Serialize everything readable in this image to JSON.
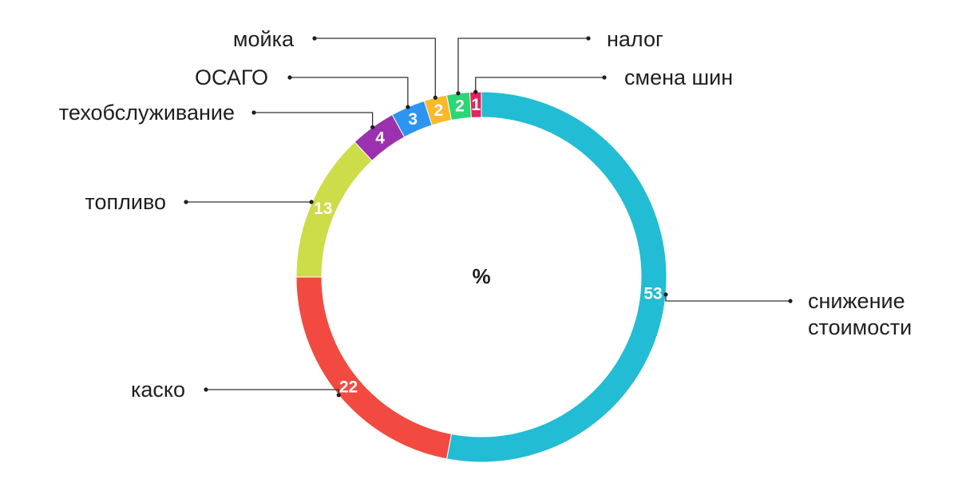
{
  "chart_data": {
    "type": "pie",
    "center_label": "%",
    "slices": [
      {
        "label": "снижение стоимости",
        "label_lines": [
          "снижение",
          "стоимости"
        ],
        "value": 53,
        "color": "#22bcd4"
      },
      {
        "label": "каско",
        "label_lines": [
          "каско"
        ],
        "value": 22,
        "color": "#f24a40"
      },
      {
        "label": "топливо",
        "label_lines": [
          "топливо"
        ],
        "value": 13,
        "color": "#cddc49"
      },
      {
        "label": "техобслуживание",
        "label_lines": [
          "техобслуживание"
        ],
        "value": 4,
        "color": "#9b31af"
      },
      {
        "label": "ОСАГО",
        "label_lines": [
          "ОСАГО"
        ],
        "value": 3,
        "color": "#2d95f0"
      },
      {
        "label": "мойка",
        "label_lines": [
          "мойка"
        ],
        "value": 2,
        "color": "#fbb828"
      },
      {
        "label": "налог",
        "label_lines": [
          "налог"
        ],
        "value": 2,
        "color": "#2bd774"
      },
      {
        "label": "смена шин",
        "label_lines": [
          "смена шин"
        ],
        "value": 1,
        "color": "#e5245d"
      }
    ]
  }
}
